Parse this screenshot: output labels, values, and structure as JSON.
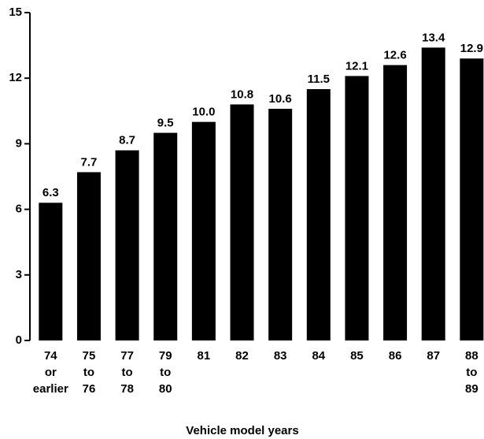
{
  "chart_data": {
    "type": "bar",
    "x_label": "Vehicle model years",
    "categories": [
      "74\nor\nearlier",
      "75\nto\n76",
      "77\nto\n78",
      "79\nto\n80",
      "81",
      "82",
      "83",
      "84",
      "85",
      "86",
      "87",
      "88\nto\n89"
    ],
    "values": [
      6.3,
      7.7,
      8.7,
      9.5,
      10.0,
      10.8,
      10.6,
      11.5,
      12.1,
      12.6,
      13.4,
      12.9
    ],
    "value_labels": [
      "6.3",
      "7.7",
      "8.7",
      "9.5",
      "10.0",
      "10.8",
      "10.6",
      "11.5",
      "12.1",
      "12.6",
      "13.4",
      "12.9"
    ],
    "color": "#000000",
    "ylim": [
      0,
      15
    ],
    "yticks": [
      0,
      3,
      6,
      9,
      12,
      15
    ],
    "grid": false
  }
}
